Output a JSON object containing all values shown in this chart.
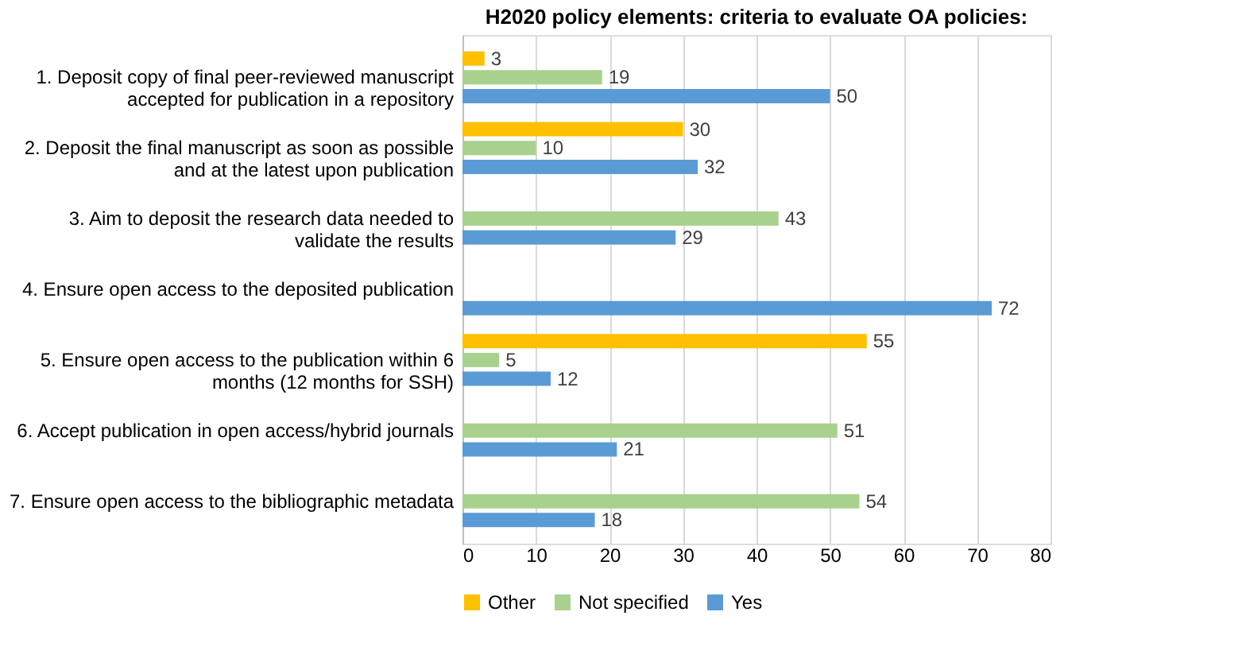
{
  "chart_data": {
    "type": "bar",
    "orientation": "horizontal",
    "title": "H2020 policy elements: criteria to evaluate OA policies:",
    "categories": [
      "1. Deposit copy of final peer-reviewed manuscript accepted for publication in a repository",
      "2. Deposit the final manuscript as soon as possible and at the latest upon publication",
      "3. Aim to deposit the research data needed to validate the results",
      "4. Ensure open access to the deposited publication",
      "5. Ensure open access to the publication within 6 months (12 months for SSH)",
      "6. Accept publication in open access/hybrid journals",
      "7. Ensure open access to the bibliographic metadata"
    ],
    "series": [
      {
        "name": "Other",
        "color": "#ffc000",
        "values": [
          3,
          30,
          null,
          null,
          55,
          null,
          null
        ]
      },
      {
        "name": "Not specified",
        "color": "#a9d18e",
        "values": [
          19,
          10,
          43,
          null,
          5,
          51,
          54
        ]
      },
      {
        "name": "Yes",
        "color": "#5b9bd5",
        "values": [
          50,
          32,
          29,
          72,
          12,
          21,
          18
        ]
      }
    ],
    "xlim": [
      0,
      80
    ],
    "xticks": [
      0,
      10,
      20,
      30,
      40,
      50,
      60,
      70,
      80
    ],
    "grid": "x",
    "legend": "bottom",
    "data_labels": true
  }
}
